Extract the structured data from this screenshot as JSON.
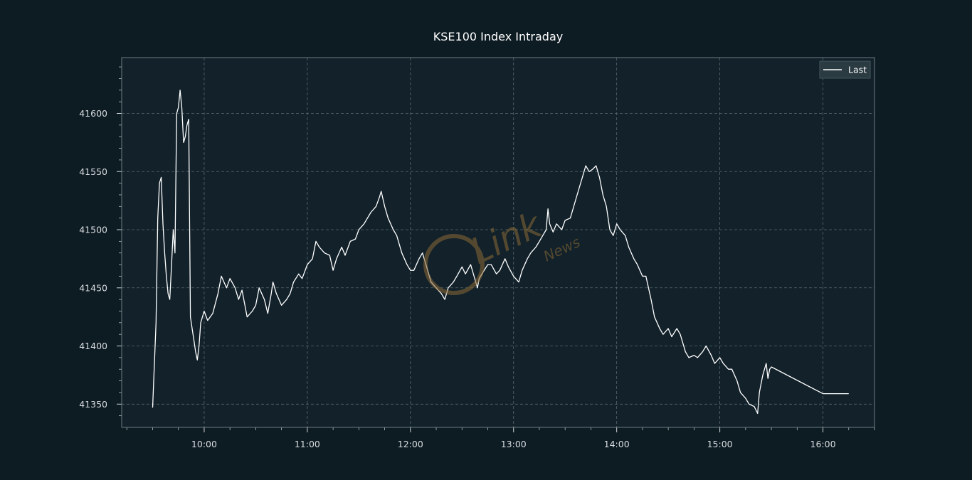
{
  "chart_data": {
    "type": "line",
    "title": "KSE100 Index Intraday",
    "xlabel": "",
    "ylabel": "",
    "x_ticks": [
      "10:00",
      "11:00",
      "12:00",
      "13:00",
      "14:00",
      "15:00",
      "16:00"
    ],
    "y_ticks": [
      41350,
      41400,
      41450,
      41500,
      41550,
      41600
    ],
    "xlim": [
      "09:12",
      "16:30"
    ],
    "ylim": [
      41330,
      41648
    ],
    "grid": true,
    "legend": {
      "placement": "top-right",
      "entries": [
        "Last"
      ]
    },
    "colors": {
      "background": "#0d1b22",
      "plot_background": "#12212a",
      "line": "#ffffff",
      "grid": "#5a6b72",
      "watermark": "#8a6a36"
    },
    "watermark": {
      "brand": "Link",
      "sub": "News"
    },
    "series": [
      {
        "name": "Last",
        "points": [
          [
            "09:30",
            41347
          ],
          [
            "09:32",
            41420
          ],
          [
            "09:33",
            41510
          ],
          [
            "09:34",
            41540
          ],
          [
            "09:35",
            41545
          ],
          [
            "09:36",
            41505
          ],
          [
            "09:37",
            41480
          ],
          [
            "09:38",
            41460
          ],
          [
            "09:39",
            41445
          ],
          [
            "09:40",
            41440
          ],
          [
            "09:41",
            41470
          ],
          [
            "09:42",
            41500
          ],
          [
            "09:43",
            41480
          ],
          [
            "09:44",
            41600
          ],
          [
            "09:45",
            41605
          ],
          [
            "09:46",
            41620
          ],
          [
            "09:47",
            41605
          ],
          [
            "09:48",
            41575
          ],
          [
            "09:49",
            41580
          ],
          [
            "09:50",
            41590
          ],
          [
            "09:51",
            41595
          ],
          [
            "09:52",
            41425
          ],
          [
            "09:53",
            41415
          ],
          [
            "09:54",
            41405
          ],
          [
            "09:55",
            41395
          ],
          [
            "09:56",
            41388
          ],
          [
            "09:57",
            41400
          ],
          [
            "09:58",
            41420
          ],
          [
            "10:00",
            41430
          ],
          [
            "10:02",
            41422
          ],
          [
            "10:05",
            41428
          ],
          [
            "10:08",
            41445
          ],
          [
            "10:10",
            41460
          ],
          [
            "10:13",
            41450
          ],
          [
            "10:15",
            41458
          ],
          [
            "10:18",
            41450
          ],
          [
            "10:20",
            41440
          ],
          [
            "10:22",
            41448
          ],
          [
            "10:25",
            41425
          ],
          [
            "10:28",
            41430
          ],
          [
            "10:30",
            41435
          ],
          [
            "10:32",
            41450
          ],
          [
            "10:35",
            41440
          ],
          [
            "10:37",
            41428
          ],
          [
            "10:39",
            41445
          ],
          [
            "10:40",
            41455
          ],
          [
            "10:42",
            41445
          ],
          [
            "10:45",
            41435
          ],
          [
            "10:48",
            41440
          ],
          [
            "10:50",
            41445
          ],
          [
            "10:52",
            41455
          ],
          [
            "10:55",
            41462
          ],
          [
            "10:57",
            41458
          ],
          [
            "11:00",
            41470
          ],
          [
            "11:03",
            41475
          ],
          [
            "11:05",
            41490
          ],
          [
            "11:07",
            41485
          ],
          [
            "11:10",
            41480
          ],
          [
            "11:13",
            41478
          ],
          [
            "11:15",
            41465
          ],
          [
            "11:17",
            41475
          ],
          [
            "11:20",
            41485
          ],
          [
            "11:22",
            41478
          ],
          [
            "11:25",
            41490
          ],
          [
            "11:28",
            41492
          ],
          [
            "11:30",
            41500
          ],
          [
            "11:33",
            41505
          ],
          [
            "11:35",
            41510
          ],
          [
            "11:37",
            41515
          ],
          [
            "11:40",
            41520
          ],
          [
            "11:42",
            41528
          ],
          [
            "11:43",
            41533
          ],
          [
            "11:45",
            41520
          ],
          [
            "11:47",
            41510
          ],
          [
            "11:50",
            41500
          ],
          [
            "11:52",
            41495
          ],
          [
            "11:55",
            41480
          ],
          [
            "11:58",
            41470
          ],
          [
            "12:00",
            41465
          ],
          [
            "12:02",
            41465
          ],
          [
            "12:05",
            41475
          ],
          [
            "12:07",
            41480
          ],
          [
            "12:10",
            41465
          ],
          [
            "12:12",
            41455
          ],
          [
            "12:15",
            41450
          ],
          [
            "12:18",
            41445
          ],
          [
            "12:20",
            41440
          ],
          [
            "12:22",
            41450
          ],
          [
            "12:25",
            41455
          ],
          [
            "12:27",
            41460
          ],
          [
            "12:30",
            41468
          ],
          [
            "12:32",
            41462
          ],
          [
            "12:35",
            41470
          ],
          [
            "12:37",
            41460
          ],
          [
            "12:39",
            41450
          ],
          [
            "12:40",
            41458
          ],
          [
            "12:42",
            41463
          ],
          [
            "12:45",
            41470
          ],
          [
            "12:47",
            41470
          ],
          [
            "12:50",
            41462
          ],
          [
            "12:52",
            41465
          ],
          [
            "12:55",
            41475
          ],
          [
            "12:57",
            41468
          ],
          [
            "13:00",
            41460
          ],
          [
            "13:03",
            41455
          ],
          [
            "13:05",
            41465
          ],
          [
            "13:08",
            41475
          ],
          [
            "13:10",
            41480
          ],
          [
            "13:13",
            41485
          ],
          [
            "13:15",
            41490
          ],
          [
            "13:17",
            41495
          ],
          [
            "13:19",
            41500
          ],
          [
            "13:20",
            41518
          ],
          [
            "13:21",
            41505
          ],
          [
            "13:23",
            41498
          ],
          [
            "13:25",
            41505
          ],
          [
            "13:28",
            41500
          ],
          [
            "13:30",
            41508
          ],
          [
            "13:33",
            41510
          ],
          [
            "13:35",
            41520
          ],
          [
            "13:37",
            41530
          ],
          [
            "13:40",
            41545
          ],
          [
            "13:42",
            41555
          ],
          [
            "13:44",
            41550
          ],
          [
            "13:46",
            41552
          ],
          [
            "13:48",
            41555
          ],
          [
            "13:50",
            41545
          ],
          [
            "13:52",
            41530
          ],
          [
            "13:54",
            41520
          ],
          [
            "13:56",
            41500
          ],
          [
            "13:58",
            41495
          ],
          [
            "14:00",
            41505
          ],
          [
            "14:02",
            41500
          ],
          [
            "14:05",
            41495
          ],
          [
            "14:07",
            41485
          ],
          [
            "14:10",
            41475
          ],
          [
            "14:12",
            41470
          ],
          [
            "14:15",
            41460
          ],
          [
            "14:17",
            41460
          ],
          [
            "14:20",
            41440
          ],
          [
            "14:22",
            41425
          ],
          [
            "14:25",
            41415
          ],
          [
            "14:27",
            41410
          ],
          [
            "14:30",
            41415
          ],
          [
            "14:32",
            41408
          ],
          [
            "14:35",
            41415
          ],
          [
            "14:37",
            41410
          ],
          [
            "14:40",
            41395
          ],
          [
            "14:42",
            41390
          ],
          [
            "14:45",
            41392
          ],
          [
            "14:47",
            41390
          ],
          [
            "14:50",
            41395
          ],
          [
            "14:52",
            41400
          ],
          [
            "14:55",
            41392
          ],
          [
            "14:57",
            41385
          ],
          [
            "15:00",
            41390
          ],
          [
            "15:02",
            41385
          ],
          [
            "15:05",
            41380
          ],
          [
            "15:07",
            41380
          ],
          [
            "15:10",
            41370
          ],
          [
            "15:12",
            41360
          ],
          [
            "15:15",
            41355
          ],
          [
            "15:17",
            41350
          ],
          [
            "15:20",
            41348
          ],
          [
            "15:22",
            41342
          ],
          [
            "15:23",
            41360
          ],
          [
            "15:25",
            41375
          ],
          [
            "15:27",
            41385
          ],
          [
            "15:28",
            41372
          ],
          [
            "15:29",
            41380
          ],
          [
            "15:30",
            41382
          ],
          [
            "16:00",
            41359
          ],
          [
            "16:15",
            41359
          ]
        ]
      }
    ]
  }
}
